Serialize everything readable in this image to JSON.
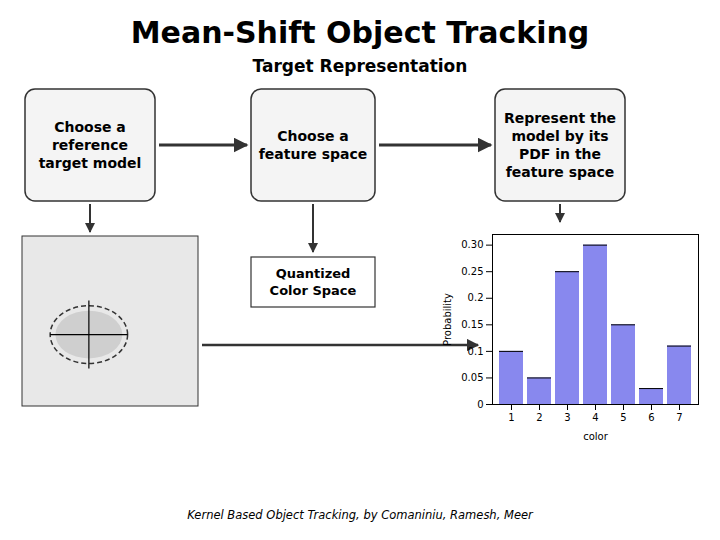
{
  "chart_data": {
    "type": "bar",
    "title": "Mean-Shift Object Tracking",
    "subtitle": "Target Representation",
    "xlabel": "color",
    "ylabel": "Probability",
    "categories": [
      "1",
      "2",
      "3",
      "4",
      "5",
      "6",
      "7"
    ],
    "values": [
      0.1,
      0.05,
      0.25,
      0.3,
      0.15,
      0.03,
      0.11
    ],
    "color": "#8888EE",
    "ylim": [
      0,
      0.32
    ],
    "yticks": [
      0,
      0.05,
      0.1,
      0.15,
      0.2,
      0.25,
      {
        "value": 0.3,
        "label": "0.30"
      }
    ],
    "grid": false,
    "annotations": [
      "Choose a\nreference\ntarget model",
      "Choose a\nfeature space",
      "Represent the\nmodel by its\nPDF in the\nfeature space",
      "Quantized\nColor Space",
      "Kernel Based Object Tracking, by Comaniniu, Ramesh, Meer"
    ]
  }
}
